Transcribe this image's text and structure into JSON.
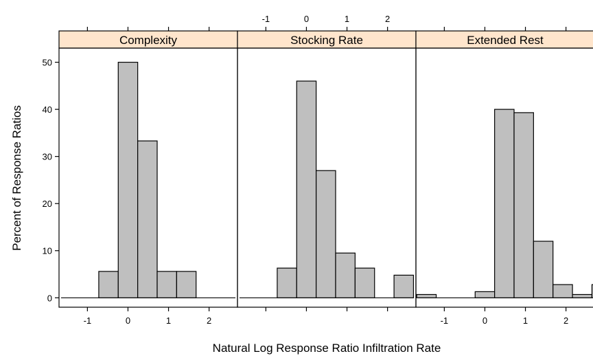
{
  "chart_data": {
    "type": "bar",
    "xlabel": "Natural Log Response Ratio Infiltration Rate",
    "ylabel": "Percent of Response Ratios",
    "xlim": [
      -1.7,
      2.7
    ],
    "ylim": [
      -2,
      53
    ],
    "x_ticks": [
      -1,
      0,
      1,
      2
    ],
    "y_ticks": [
      0,
      10,
      20,
      30,
      40,
      50
    ],
    "bin_width": 0.48,
    "bin_start": -0.72,
    "colors": {
      "strip": "#ffe5cc",
      "bar": "#bfbfbf",
      "frame": "#000000"
    },
    "panels": [
      {
        "name": "Complexity",
        "values": [
          5.6,
          50,
          33.3,
          5.6,
          5.6,
          0,
          0,
          0
        ]
      },
      {
        "name": "Stocking Rate",
        "values": [
          6.3,
          46,
          27,
          9.5,
          6.3,
          0,
          4.8,
          0
        ]
      },
      {
        "name": "Extended Rest",
        "values": [
          0,
          1.3,
          40,
          39.3,
          12,
          2.8,
          0.7,
          2.8
        ]
      }
    ],
    "extra_bars": [
      {},
      {},
      {
        "start": -1.68,
        "value": 0.7
      }
    ]
  }
}
